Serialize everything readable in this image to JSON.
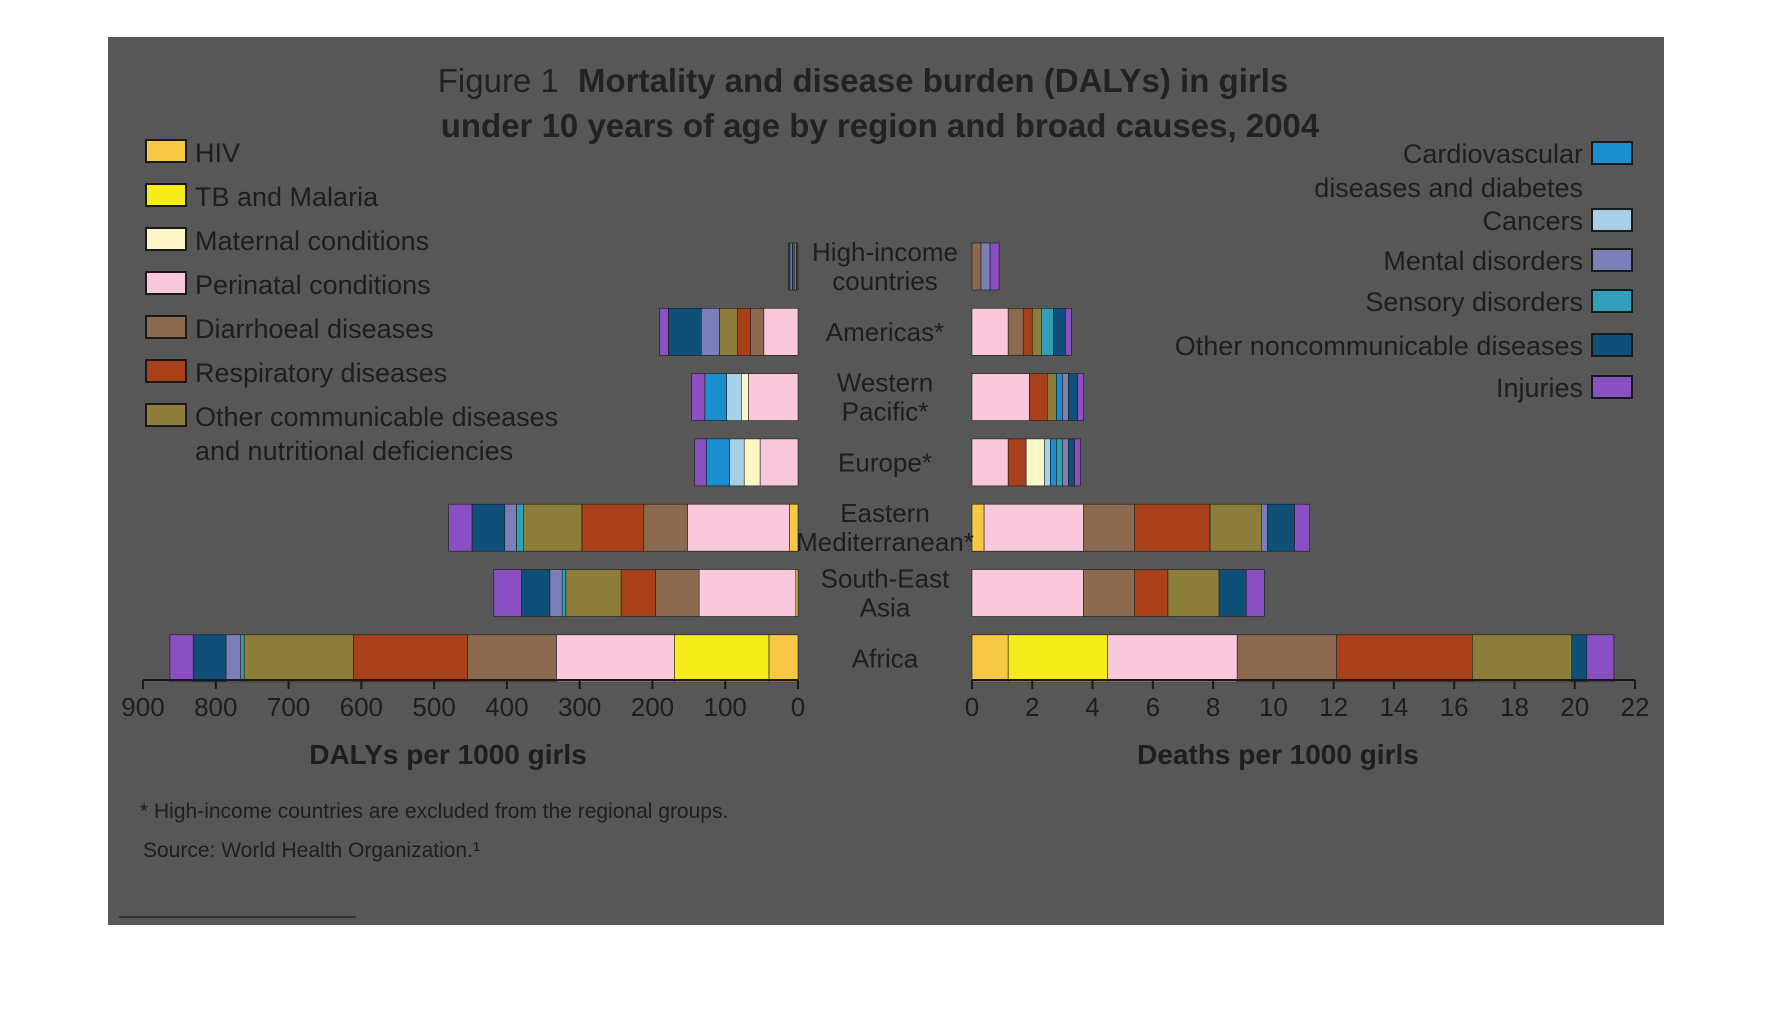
{
  "chart_data": {
    "type": "bar",
    "orientation": "horizontal",
    "stacked": true,
    "figure_label": "Figure 1",
    "title": "Mortality and disease burden (DALYs) in girls under 10 years of age by region and broad causes, 2004",
    "title_lines": [
      "Mortality and disease burden (DALYs) in girls",
      "under 10 years of age by region and broad causes, 2004"
    ],
    "categories": [
      [
        "High-income",
        "countries"
      ],
      [
        "Americas*"
      ],
      [
        "Western",
        "Pacific*"
      ],
      [
        "Europe*"
      ],
      [
        "Eastern",
        "Mediterranean*"
      ],
      [
        "South-East",
        "Asia"
      ],
      [
        "Africa"
      ]
    ],
    "grid": false,
    "legend_placement": "left and right of the bars",
    "left_axis": {
      "label": "DALYs per 1000 girls",
      "ticks": [
        900,
        800,
        700,
        600,
        500,
        400,
        300,
        200,
        100,
        0
      ],
      "range": [
        900,
        0
      ],
      "direction": "reversed"
    },
    "right_axis": {
      "label": "Deaths per 1000 girls",
      "ticks": [
        0,
        2,
        4,
        6,
        8,
        10,
        12,
        14,
        16,
        18,
        20,
        22
      ],
      "range": [
        0,
        22
      ]
    },
    "series": [
      {
        "key": "hiv",
        "name": "HIV",
        "legend_lines": [
          "HIV"
        ],
        "color": "#f7c843",
        "legend_side": "left"
      },
      {
        "key": "tb",
        "name": "TB and Malaria",
        "legend_lines": [
          "TB and Malaria"
        ],
        "color": "#f5ec1a",
        "legend_side": "left"
      },
      {
        "key": "maternal",
        "name": "Maternal conditions",
        "legend_lines": [
          "Maternal conditions"
        ],
        "color": "#fdf6c9",
        "legend_side": "left"
      },
      {
        "key": "perinatal",
        "name": "Perinatal conditions",
        "legend_lines": [
          "Perinatal conditions"
        ],
        "color": "#f9c8dc",
        "legend_side": "left"
      },
      {
        "key": "diarrhoeal",
        "name": "Diarrhoeal diseases",
        "legend_lines": [
          "Diarrhoeal diseases"
        ],
        "color": "#8c6a4f",
        "legend_side": "left"
      },
      {
        "key": "respiratory",
        "name": "Respiratory diseases",
        "legend_lines": [
          "Respiratory diseases"
        ],
        "color": "#a8411a",
        "legend_side": "left"
      },
      {
        "key": "other_comm",
        "name": "Other communicable diseases and nutritional deficiencies",
        "legend_lines": [
          "Other communicable diseases",
          "and nutritional deficiencies"
        ],
        "color": "#8c7d3a",
        "legend_side": "left"
      },
      {
        "key": "cardio",
        "name": "Cardiovascular diseases and diabetes",
        "legend_lines": [
          "Cardiovascular",
          "diseases and diabetes"
        ],
        "color": "#1a8fd0",
        "legend_side": "right"
      },
      {
        "key": "cancers",
        "name": "Cancers",
        "legend_lines": [
          "Cancers"
        ],
        "color": "#a8cfe8",
        "legend_side": "right"
      },
      {
        "key": "mental",
        "name": "Mental disorders",
        "legend_lines": [
          "Mental disorders"
        ],
        "color": "#7b7fb8",
        "legend_side": "right"
      },
      {
        "key": "sensory",
        "name": "Sensory disorders",
        "legend_lines": [
          "Sensory disorders"
        ],
        "color": "#2fa0b8",
        "legend_side": "right"
      },
      {
        "key": "other_ncd",
        "name": "Other noncommunicable diseases",
        "legend_lines": [
          "Other noncommunicable diseases"
        ],
        "color": "#0f4f78",
        "legend_side": "right"
      },
      {
        "key": "injuries",
        "name": "Injuries",
        "legend_lines": [
          "Injuries"
        ],
        "color": "#8a4fc0",
        "legend_side": "right"
      }
    ],
    "stack_order_from_zero": [
      "hiv",
      "tb",
      "perinatal",
      "diarrhoeal",
      "respiratory",
      "other_comm",
      "maternal",
      "cancers",
      "cardio",
      "sensory",
      "mental",
      "other_ncd",
      "injuries"
    ],
    "dalys_per_1000": [
      {
        "hiv": 1,
        "tb": 0,
        "perinatal": 0,
        "diarrhoeal": 1,
        "respiratory": 1,
        "other_comm": 0,
        "maternal": 0,
        "cancers": 2,
        "cardio": 2,
        "sensory": 1,
        "mental": 3,
        "other_ncd": 2,
        "injuries": 0
      },
      {
        "hiv": 0,
        "tb": 0,
        "perinatal": 47,
        "diarrhoeal": 18,
        "respiratory": 18,
        "other_comm": 25,
        "maternal": 0,
        "cancers": 0,
        "cardio": 0,
        "sensory": 0,
        "mental": 25,
        "other_ncd": 45,
        "injuries": 12
      },
      {
        "hiv": 0,
        "tb": 0,
        "perinatal": 68,
        "diarrhoeal": 0,
        "respiratory": 0,
        "other_comm": 0,
        "maternal": 10,
        "cancers": 20,
        "cardio": 30,
        "sensory": 0,
        "mental": 0,
        "other_ncd": 0,
        "injuries": 18
      },
      {
        "hiv": 0,
        "tb": 0,
        "perinatal": 52,
        "diarrhoeal": 0,
        "respiratory": 0,
        "other_comm": 0,
        "maternal": 22,
        "cancers": 20,
        "cardio": 32,
        "sensory": 0,
        "mental": 0,
        "other_ncd": 0,
        "injuries": 16
      },
      {
        "hiv": 12,
        "tb": 0,
        "perinatal": 140,
        "diarrhoeal": 60,
        "respiratory": 85,
        "other_comm": 80,
        "maternal": 0,
        "cancers": 0,
        "cardio": 0,
        "sensory": 10,
        "mental": 16,
        "other_ncd": 45,
        "injuries": 32
      },
      {
        "hiv": 3,
        "tb": 0,
        "perinatal": 133,
        "diarrhoeal": 60,
        "respiratory": 47,
        "other_comm": 76,
        "maternal": 0,
        "cancers": 0,
        "cardio": 0,
        "sensory": 5,
        "mental": 17,
        "other_ncd": 39,
        "injuries": 38
      },
      {
        "hiv": 40,
        "tb": 130,
        "perinatal": 162,
        "diarrhoeal": 122,
        "respiratory": 157,
        "other_comm": 150,
        "maternal": 0,
        "cancers": 0,
        "cardio": 0,
        "sensory": 5,
        "mental": 20,
        "other_ncd": 45,
        "injuries": 32
      }
    ],
    "deaths_per_1000": [
      {
        "hiv": 0,
        "tb": 0,
        "perinatal": 0,
        "diarrhoeal": 0.3,
        "respiratory": 0,
        "other_comm": 0,
        "maternal": 0,
        "cancers": 0,
        "cardio": 0,
        "sensory": 0,
        "mental": 0.3,
        "other_ncd": 0,
        "injuries": 0.3
      },
      {
        "hiv": 0,
        "tb": 0,
        "perinatal": 1.2,
        "diarrhoeal": 0.5,
        "respiratory": 0.3,
        "other_comm": 0.3,
        "maternal": 0,
        "cancers": 0,
        "cardio": 0,
        "sensory": 0.4,
        "mental": 0,
        "other_ncd": 0.4,
        "injuries": 0.2
      },
      {
        "hiv": 0,
        "tb": 0,
        "perinatal": 1.9,
        "diarrhoeal": 0,
        "respiratory": 0.6,
        "other_comm": 0.3,
        "maternal": 0,
        "cancers": 0,
        "cardio": 0.2,
        "sensory": 0,
        "mental": 0.2,
        "other_ncd": 0.3,
        "injuries": 0.2
      },
      {
        "hiv": 0,
        "tb": 0,
        "perinatal": 1.2,
        "diarrhoeal": 0,
        "respiratory": 0.6,
        "other_comm": 0,
        "maternal": 0.6,
        "cancers": 0.2,
        "cardio": 0.2,
        "sensory": 0.2,
        "mental": 0.2,
        "other_ncd": 0.2,
        "injuries": 0.2
      },
      {
        "hiv": 0.4,
        "tb": 0,
        "perinatal": 3.3,
        "diarrhoeal": 1.7,
        "respiratory": 2.5,
        "other_comm": 1.7,
        "maternal": 0,
        "cancers": 0,
        "cardio": 0,
        "sensory": 0,
        "mental": 0.2,
        "other_ncd": 0.9,
        "injuries": 0.5
      },
      {
        "hiv": 0,
        "tb": 0,
        "perinatal": 3.7,
        "diarrhoeal": 1.7,
        "respiratory": 1.1,
        "other_comm": 1.7,
        "maternal": 0,
        "cancers": 0,
        "cardio": 0,
        "sensory": 0,
        "mental": 0,
        "other_ncd": 0.9,
        "injuries": 0.6
      },
      {
        "hiv": 1.2,
        "tb": 3.3,
        "perinatal": 4.3,
        "diarrhoeal": 3.3,
        "respiratory": 4.5,
        "other_comm": 3.3,
        "maternal": 0,
        "cancers": 0,
        "cardio": 0,
        "sensory": 0,
        "mental": 0,
        "other_ncd": 0.5,
        "injuries": 0.9
      }
    ],
    "footnotes": [
      "* High-income countries are excluded from the regional groups.",
      "Source: World Health Organization.¹"
    ]
  }
}
